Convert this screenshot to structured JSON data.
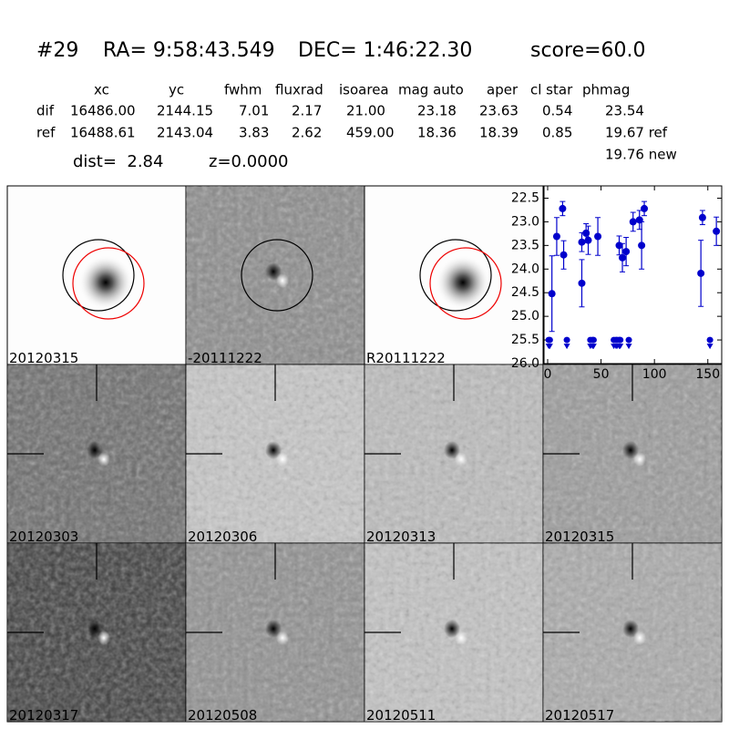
{
  "header": {
    "id": "#29",
    "ra": "RA= 9:58:43.549",
    "dec": "DEC= 1:46:22.30",
    "score": "score=60.0"
  },
  "table": {
    "columns": [
      "xc",
      "yc",
      "fwhm",
      "fluxrad",
      "isoarea",
      "mag auto",
      "aper",
      "cl star",
      "phmag"
    ],
    "rows": [
      [
        "dif",
        "16486.00",
        "2144.15",
        "7.01",
        "2.17",
        "21.00",
        "23.18",
        "23.63",
        "0.54",
        "23.54"
      ],
      [
        "ref",
        "16488.61",
        "2143.04",
        "3.83",
        "2.62",
        "459.00",
        "18.36",
        "18.39",
        "0.85",
        "19.67 ref"
      ]
    ],
    "extra": "19.76 new"
  },
  "dist": "dist=  2.84",
  "redshift": "z=0.0000",
  "panels": [
    {
      "label": "20120315"
    },
    {
      "label": "-20111222"
    },
    {
      "label": "R20111222"
    },
    {
      "label": "20120303"
    },
    {
      "label": "20120306"
    },
    {
      "label": "20120313"
    },
    {
      "label": "20120315",
      "label_color": "#ff0000"
    },
    {
      "label": "20120317"
    },
    {
      "label": "20120508"
    },
    {
      "label": "20120511"
    },
    {
      "label": "20120517"
    }
  ],
  "chart_data": {
    "type": "scatter",
    "xlim": [
      -3.4,
      163
    ],
    "xticks": [
      0,
      50,
      100,
      150
    ],
    "ylim": [
      26.0,
      22.24
    ],
    "yticks": [
      {
        "value": 22.5,
        "label": "22.5"
      },
      {
        "value": 23,
        "label": "23.0"
      },
      {
        "value": 23.5,
        "label": "23.5"
      },
      {
        "value": 24,
        "label": "24.0"
      },
      {
        "value": 24.5,
        "label": "24.5"
      },
      {
        "value": 25,
        "label": "25.0"
      },
      {
        "value": 25.5,
        "label": "25.5"
      },
      {
        "value": 26,
        "label": "26.0"
      }
    ],
    "series": [
      {
        "color": "#0000cc",
        "x": [
          4,
          8.5,
          14,
          15,
          32,
          32,
          36,
          38,
          47,
          67,
          70,
          73.5,
          80,
          86,
          88,
          90.5,
          143.5,
          145,
          158
        ],
        "values": [
          24.52,
          23.31,
          22.72,
          23.7,
          23.43,
          24.3,
          23.24,
          23.39,
          23.31,
          23.5,
          23.76,
          23.63,
          23.0,
          22.96,
          23.5,
          22.72,
          24.09,
          22.91,
          23.2
        ],
        "errors": [
          0.8,
          0.4,
          0.15,
          0.3,
          0.2,
          0.5,
          0.2,
          0.3,
          0.4,
          0.2,
          0.3,
          0.3,
          0.2,
          0.2,
          0.5,
          0.15,
          0.7,
          0.15,
          0.3
        ]
      },
      {
        "color": "#0000cc",
        "upper_limit": true,
        "x": [
          1,
          2,
          18,
          40,
          42,
          43,
          62,
          64,
          65,
          67,
          68,
          76,
          152
        ],
        "values": [
          25.5,
          25.5,
          25.5,
          25.5,
          25.5,
          25.5,
          25.5,
          25.5,
          25.5,
          25.5,
          25.5,
          25.5,
          25.5
        ]
      }
    ]
  }
}
